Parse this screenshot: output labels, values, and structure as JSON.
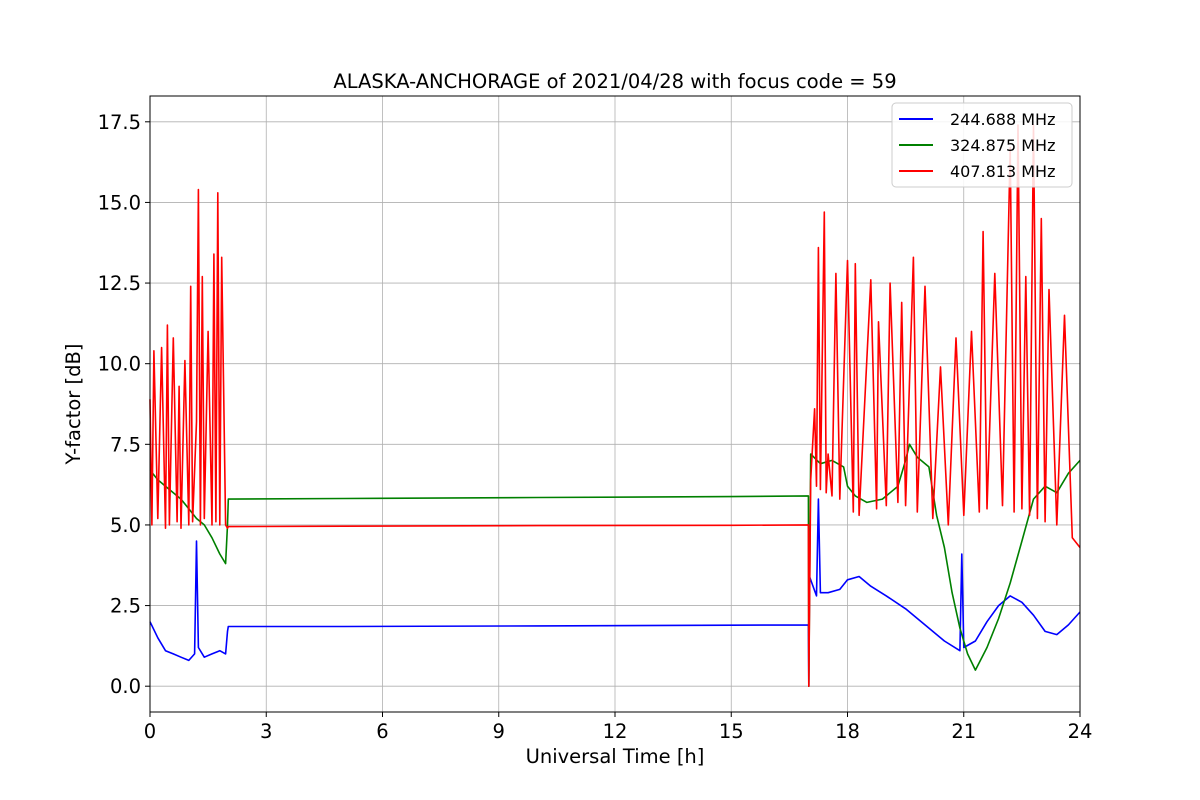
{
  "chart_data": {
    "type": "line",
    "title": "ALASKA-ANCHORAGE of 2021/04/28 with focus code = 59",
    "xlabel": "Universal Time [h]",
    "ylabel": "Y-factor [dB]",
    "xlim": [
      0,
      24
    ],
    "ylim": [
      -0.8,
      18.3
    ],
    "xticks": [
      0,
      3,
      6,
      9,
      12,
      15,
      18,
      21,
      24
    ],
    "xtick_labels": [
      "0",
      "3",
      "6",
      "9",
      "12",
      "15",
      "18",
      "21",
      "24"
    ],
    "yticks": [
      0,
      2.5,
      5,
      7.5,
      10,
      12.5,
      15,
      17.5
    ],
    "ytick_labels": [
      "0.0",
      "2.5",
      "5.0",
      "7.5",
      "10.0",
      "12.5",
      "15.0",
      "17.5"
    ],
    "grid": true,
    "legend_position": "top-right",
    "series": [
      {
        "name": "244.688 MHz",
        "color": "#0000ff",
        "x": [
          0,
          0.2,
          0.4,
          0.6,
          0.8,
          1.0,
          1.15,
          1.2,
          1.25,
          1.4,
          1.6,
          1.8,
          1.95,
          2.0,
          2.02,
          5,
          10,
          15,
          16.99,
          17.0,
          17.02,
          17.2,
          17.25,
          17.3,
          17.5,
          17.8,
          18.0,
          18.3,
          18.6,
          19.0,
          19.5,
          20.0,
          20.5,
          20.9,
          20.95,
          21.0,
          21.3,
          21.6,
          21.9,
          22.2,
          22.5,
          22.8,
          23.1,
          23.4,
          23.7,
          24
        ],
        "y": [
          2.0,
          1.5,
          1.1,
          1.0,
          0.9,
          0.8,
          1.0,
          4.5,
          1.2,
          0.9,
          1.0,
          1.1,
          1.0,
          1.7,
          1.85,
          1.85,
          1.87,
          1.89,
          1.9,
          0.0,
          3.4,
          2.8,
          5.8,
          2.9,
          2.9,
          3.0,
          3.3,
          3.4,
          3.1,
          2.8,
          2.4,
          1.9,
          1.4,
          1.1,
          4.1,
          1.2,
          1.4,
          2.0,
          2.5,
          2.8,
          2.6,
          2.2,
          1.7,
          1.6,
          1.9,
          2.3
        ]
      },
      {
        "name": "324.875 MHz",
        "color": "#008000",
        "x": [
          0,
          0.2,
          0.4,
          0.6,
          0.8,
          1.0,
          1.2,
          1.4,
          1.6,
          1.8,
          1.95,
          2.0,
          2.02,
          5,
          10,
          15,
          16.99,
          17.0,
          17.05,
          17.3,
          17.6,
          17.9,
          18.0,
          18.2,
          18.5,
          18.9,
          19.3,
          19.5,
          19.6,
          19.8,
          20.1,
          20.3,
          20.5,
          20.7,
          20.9,
          21.1,
          21.3,
          21.6,
          21.9,
          22.2,
          22.5,
          22.8,
          23.1,
          23.4,
          23.7,
          24
        ],
        "y": [
          6.7,
          6.4,
          6.2,
          6.0,
          5.8,
          5.5,
          5.2,
          5.0,
          4.6,
          4.1,
          3.8,
          5.0,
          5.8,
          5.82,
          5.85,
          5.88,
          5.9,
          0.0,
          7.2,
          6.9,
          7.0,
          6.8,
          6.2,
          5.9,
          5.7,
          5.8,
          6.2,
          7.0,
          7.5,
          7.1,
          6.8,
          5.3,
          4.3,
          2.9,
          1.8,
          1.0,
          0.5,
          1.2,
          2.1,
          3.2,
          4.5,
          5.8,
          6.2,
          6.0,
          6.6,
          7.0
        ]
      },
      {
        "name": "407.813 MHz",
        "color": "#ff0000",
        "x": [
          0,
          0.05,
          0.1,
          0.2,
          0.3,
          0.4,
          0.45,
          0.5,
          0.6,
          0.7,
          0.75,
          0.8,
          0.9,
          1.0,
          1.05,
          1.1,
          1.2,
          1.25,
          1.3,
          1.35,
          1.4,
          1.5,
          1.6,
          1.65,
          1.7,
          1.75,
          1.8,
          1.85,
          1.95,
          2.0,
          2.02,
          5,
          10,
          15,
          16.99,
          17.0,
          17.05,
          17.15,
          17.2,
          17.25,
          17.3,
          17.4,
          17.45,
          17.5,
          17.6,
          17.7,
          17.8,
          18.0,
          18.15,
          18.2,
          18.3,
          18.6,
          18.75,
          18.8,
          19.0,
          19.1,
          19.3,
          19.4,
          19.5,
          19.7,
          19.8,
          20.0,
          20.2,
          20.4,
          20.6,
          20.8,
          21.0,
          21.2,
          21.4,
          21.5,
          21.6,
          21.8,
          22.0,
          22.2,
          22.3,
          22.4,
          22.5,
          22.6,
          22.7,
          22.8,
          22.9,
          23.0,
          23.1,
          23.2,
          23.4,
          23.6,
          23.8,
          24
        ],
        "y": [
          8.9,
          5.0,
          10.4,
          5.2,
          10.5,
          4.9,
          11.2,
          5.0,
          10.8,
          5.1,
          9.3,
          4.9,
          10.1,
          5.0,
          12.4,
          5.1,
          8.2,
          15.4,
          5.0,
          12.7,
          5.2,
          11.0,
          5.0,
          13.4,
          5.1,
          15.3,
          5.0,
          13.3,
          5.0,
          4.9,
          4.95,
          4.96,
          4.98,
          4.99,
          5.0,
          0.0,
          6.4,
          8.6,
          6.2,
          13.6,
          6.1,
          14.7,
          6.0,
          7.2,
          5.9,
          12.8,
          5.8,
          13.2,
          5.4,
          13.1,
          5.3,
          12.6,
          5.5,
          11.3,
          5.6,
          12.5,
          5.7,
          11.9,
          5.6,
          13.3,
          5.4,
          12.4,
          5.2,
          9.9,
          5.0,
          10.8,
          5.3,
          11.0,
          5.4,
          14.1,
          5.5,
          12.8,
          5.6,
          16.7,
          5.4,
          17.4,
          5.5,
          12.7,
          5.3,
          17.4,
          5.2,
          14.5,
          5.1,
          12.3,
          5.0,
          11.5,
          4.6,
          4.3
        ]
      }
    ]
  }
}
